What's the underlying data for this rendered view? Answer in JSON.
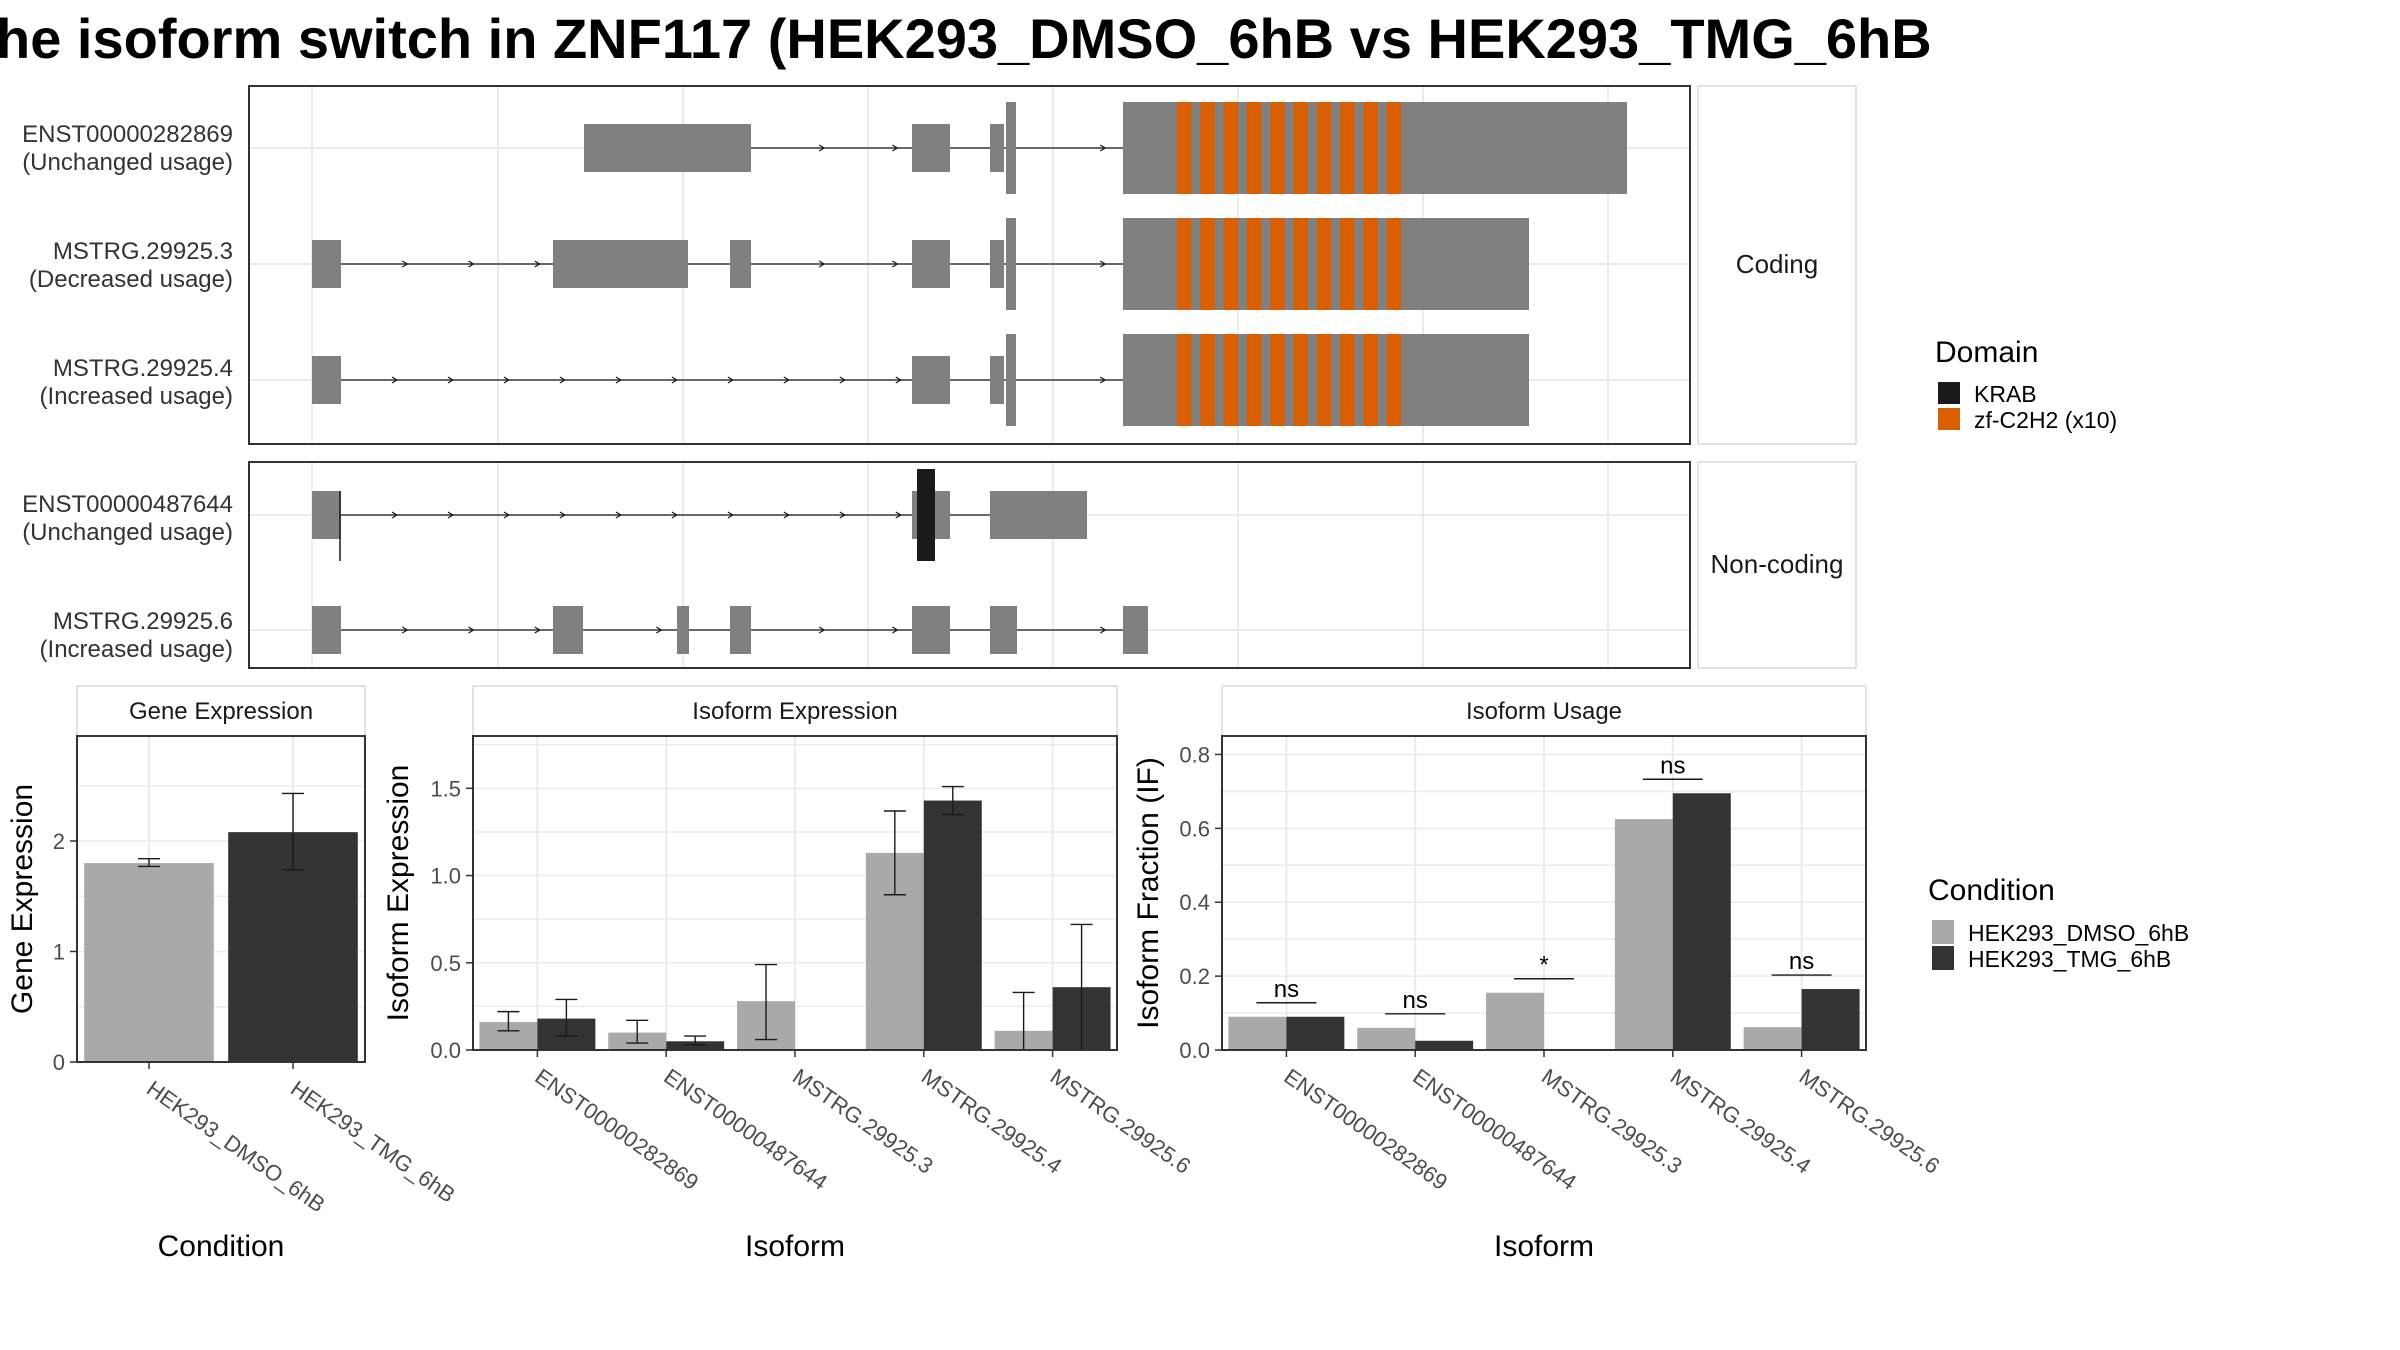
{
  "title": "he isoform switch in ZNF117 (HEK293_DMSO_6hB vs HEK293_TMG_6hB",
  "colors": {
    "exon": "#808080",
    "krab": "#1a1a1a",
    "zf": "#d95f02",
    "dmso": "#a9a9a9",
    "tmg": "#333333",
    "grid": "#ebebeb",
    "panel_border": "#333333",
    "strip_border": "#d9d9d9"
  },
  "structure": {
    "coding": {
      "label": "Coding",
      "transcripts": [
        {
          "name": "ENST00000282869",
          "usage": "(Unchanged usage)"
        },
        {
          "name": "MSTRG.29925.3",
          "usage": "(Decreased usage)"
        },
        {
          "name": "MSTRG.29925.4",
          "usage": "(Increased usage)"
        }
      ]
    },
    "noncoding": {
      "label": "Non-coding",
      "transcripts": [
        {
          "name": "ENST00000487644",
          "usage": "(Unchanged usage)"
        },
        {
          "name": "MSTRG.29925.6",
          "usage": "(Increased usage)"
        }
      ]
    }
  },
  "domain_legend": {
    "title": "Domain",
    "items": [
      {
        "label": "KRAB",
        "color": "#1a1a1a"
      },
      {
        "label": "zf-C2H2 (x10)",
        "color": "#d95f02"
      }
    ]
  },
  "condition_legend": {
    "title": "Condition",
    "items": [
      {
        "label": "HEK293_DMSO_6hB",
        "color": "#a9a9a9"
      },
      {
        "label": "HEK293_TMG_6hB",
        "color": "#333333"
      }
    ]
  },
  "chart_data": [
    {
      "type": "bar",
      "title": "Gene Expression",
      "xlabel": "Condition",
      "ylabel": "Gene Expression",
      "ylim": [
        0,
        2.95
      ],
      "yticks": [
        "0",
        "1",
        "2"
      ],
      "categories": [
        "HEK293_DMSO_6hB",
        "HEK293_TMG_6hB"
      ],
      "values": [
        1.8,
        2.08
      ],
      "error": [
        [
          1.77,
          1.84
        ],
        [
          1.74,
          2.43
        ]
      ]
    },
    {
      "type": "bar",
      "title": "Isoform Expression",
      "xlabel": "Isoform",
      "ylabel": "Isoform Expression",
      "ylim": [
        0,
        1.8
      ],
      "yticks": [
        "0.0",
        "0.5",
        "1.0",
        "1.5"
      ],
      "categories": [
        "ENST00000282869",
        "ENST00000487644",
        "MSTRG.29925.3",
        "MSTRG.29925.4",
        "MSTRG.29925.6"
      ],
      "series": [
        {
          "name": "HEK293_DMSO_6hB",
          "values": [
            0.16,
            0.1,
            0.28,
            1.13,
            0.11
          ],
          "error": [
            [
              0.11,
              0.22
            ],
            [
              0.04,
              0.17
            ],
            [
              0.06,
              0.49
            ],
            [
              0.89,
              1.37
            ],
            [
              0.0,
              0.33
            ]
          ]
        },
        {
          "name": "HEK293_TMG_6hB",
          "values": [
            0.18,
            0.05,
            0.0,
            1.43,
            0.36
          ],
          "error": [
            [
              0.08,
              0.29
            ],
            [
              0.03,
              0.08
            ],
            [
              0.0,
              0.0
            ],
            [
              1.35,
              1.51
            ],
            [
              0.0,
              0.72
            ]
          ]
        }
      ]
    },
    {
      "type": "bar",
      "title": "Isoform Usage",
      "xlabel": "Isoform",
      "ylabel": "Isoform Fraction (IF)",
      "ylim": [
        0,
        0.85
      ],
      "yticks": [
        "0.0",
        "0.2",
        "0.4",
        "0.6",
        "0.8"
      ],
      "categories": [
        "ENST00000282869",
        "ENST00000487644",
        "MSTRG.29925.3",
        "MSTRG.29925.4",
        "MSTRG.29925.6"
      ],
      "series": [
        {
          "name": "HEK293_DMSO_6hB",
          "values": [
            0.09,
            0.06,
            0.155,
            0.625,
            0.062
          ]
        },
        {
          "name": "HEK293_TMG_6hB",
          "values": [
            0.09,
            0.025,
            0.0,
            0.695,
            0.165
          ]
        }
      ],
      "significance": [
        "ns",
        "ns",
        "*",
        "ns",
        "ns"
      ]
    }
  ]
}
